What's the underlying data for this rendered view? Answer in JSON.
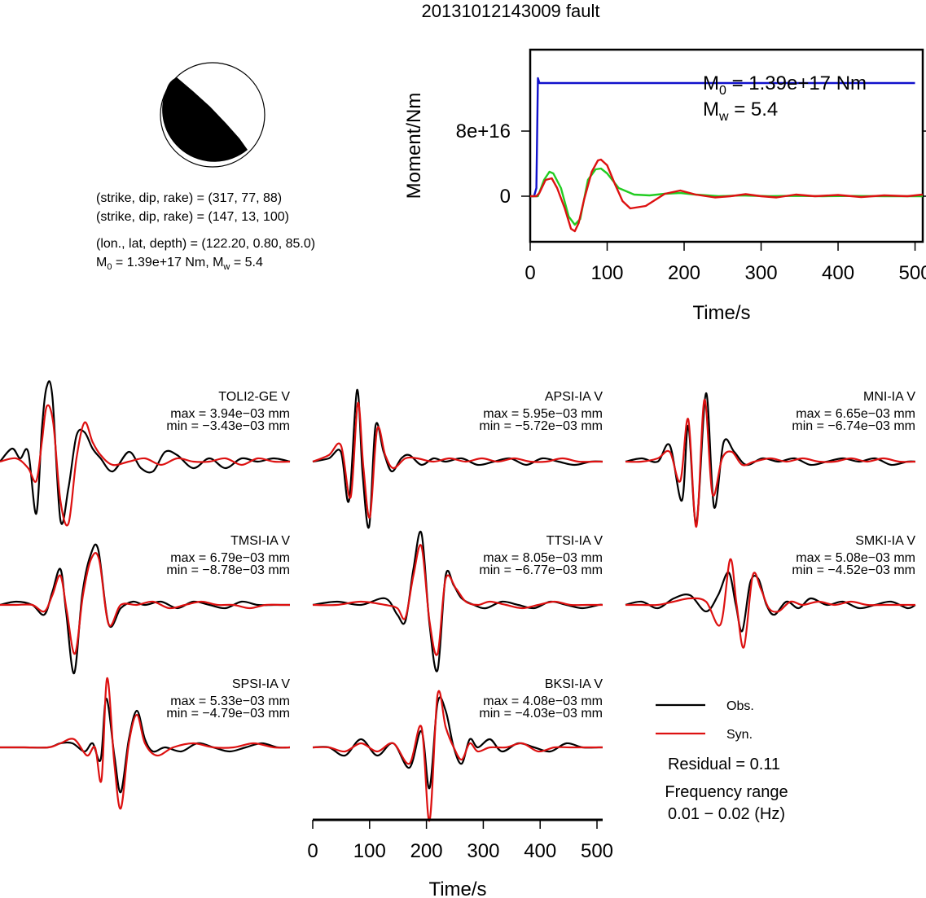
{
  "title": "20131012143009 fault",
  "source_params": {
    "line1": "(strike, dip, rake) = (317, 77, 88)",
    "line2": "(strike, dip, rake) = (147, 13, 100)",
    "line3": "(lon., lat, depth) = (122.20, 0.80, 85.0)",
    "m0_prefix": "M",
    "m0_sub": "0",
    "m0_mid": " = 1.39e+17 Nm, M",
    "mw_sub": "w",
    "mw_end": " = 5.4"
  },
  "moment_annotation": {
    "m0_symbol": "M",
    "m0_sub": "0",
    "m0_text": " = 1.39e+17 Nm",
    "mw_symbol": "M",
    "mw_sub": "w",
    "mw_text": " = 5.4"
  },
  "colors": {
    "observed": "#000000",
    "synthetic": "#dd1111",
    "cumulative_moment": "#1111cc",
    "moment_rate": "#22cc22"
  },
  "chart_data": [
    {
      "type": "line",
      "xlabel": "Time/s",
      "ylabel": "Moment/Nm",
      "xlim": [
        0,
        510
      ],
      "ylim": [
        -5.6e+16,
        1.8e+17
      ],
      "xticks": [
        0,
        100,
        200,
        300,
        400,
        500
      ],
      "xtick_labels": [
        "0",
        "100",
        "200",
        "300",
        "400",
        "500"
      ],
      "yticks": [
        0,
        8e+16
      ],
      "ytick_labels": [
        "0",
        "8e+16"
      ],
      "series": [
        {
          "x": [
            0,
            5,
            8,
            10,
            12,
            500
          ],
          "y": [
            0,
            0,
            1e+16,
            1.45e+17,
            1.39e+17,
            1.39e+17
          ]
        },
        {
          "x": [
            0,
            10,
            18,
            25,
            30,
            40,
            50,
            58,
            65,
            75,
            85,
            92,
            100,
            115,
            135,
            155,
            175,
            195,
            215,
            245,
            275,
            310,
            345,
            380,
            420,
            460,
            510
          ],
          "y": [
            0,
            0,
            2e+16,
            3e+16,
            2.8e+16,
            1e+16,
            -2.5e+16,
            -3.5e+16,
            -2.8e+16,
            2e+16,
            3.3e+16,
            3.4e+16,
            2.8e+16,
            1e+16,
            2000000000000000.0,
            1000000000000000.0,
            3000000000000000.0,
            4000000000000000.0,
            2000000000000000.0,
            0,
            1000000000000000.0,
            0,
            500000000000000.0,
            0,
            300000000000000.0,
            0,
            0
          ]
        },
        {
          "x": [
            0,
            8,
            12,
            20,
            28,
            35,
            45,
            53,
            58,
            63,
            70,
            80,
            88,
            92,
            100,
            110,
            120,
            130,
            150,
            175,
            195,
            215,
            240,
            260,
            280,
            300,
            320,
            345,
            370,
            400,
            430,
            460,
            490,
            510
          ],
          "y": [
            0,
            0,
            4000000000000000.0,
            2e+16,
            2.2e+16,
            1e+16,
            -1.5e+16,
            -4e+16,
            -4.3e+16,
            -3.3e+16,
            -4000000000000000.0,
            3e+16,
            4.4e+16,
            4.5e+16,
            3.8e+16,
            1.5e+16,
            -6000000000000000.0,
            -1.5e+16,
            -1.2e+16,
            3000000000000000.0,
            7000000000000000.0,
            2000000000000000.0,
            -1500000000000000.0,
            0,
            2500000000000000.0,
            0,
            -1500000000000000.0,
            2000000000000000.0,
            0,
            1500000000000000.0,
            -1000000000000000.0,
            1000000000000000.0,
            0,
            2000000000000000.0
          ]
        }
      ]
    },
    {
      "type": "line",
      "layout": "grid-3x3",
      "xlabel": "Time/s",
      "xlim": [
        0,
        510
      ],
      "xticks": [
        0,
        100,
        200,
        300,
        400,
        500
      ],
      "xtick_labels": [
        "0",
        "100",
        "200",
        "300",
        "400",
        "500"
      ],
      "legend": {
        "position": "bottom-right",
        "obs_label": "Obs.",
        "syn_label": "Syn."
      },
      "residual_text": "Residual = 0.11",
      "freq_line1": "Frequency range",
      "freq_line2": "0.01 − 0.02 (Hz)",
      "stations": [
        {
          "name": "TOLI2-GE V",
          "max_text": "max = 3.94e−03 mm",
          "min_text": "min = −3.43e−03 mm",
          "obs_x": [
            0,
            15,
            25,
            35,
            45,
            52,
            58,
            65,
            75,
            85,
            95,
            105,
            115,
            125,
            140,
            160,
            175,
            190,
            205,
            220,
            240,
            260,
            280,
            300,
            320,
            340,
            360
          ],
          "obs_y": [
            0,
            0.4,
            0.1,
            0.3,
            -1.6,
            1.0,
            2.3,
            2.0,
            -1.8,
            -0.8,
            0.8,
            0.9,
            0.4,
            0.1,
            -0.3,
            0.3,
            -0.2,
            -0.3,
            0.3,
            0.2,
            -0.2,
            0.1,
            -0.2,
            0.1,
            0.0,
            0.1,
            0.0
          ],
          "syn_x": [
            0,
            20,
            35,
            45,
            52,
            58,
            66,
            75,
            85,
            95,
            105,
            115,
            125,
            140,
            160,
            180,
            200,
            220,
            240,
            260,
            280,
            300,
            320,
            340,
            360
          ],
          "syn_y": [
            0,
            0.1,
            -0.2,
            -0.6,
            0.6,
            1.7,
            1.2,
            -1.2,
            -1.9,
            0.1,
            1.2,
            0.6,
            0.2,
            -0.1,
            0.0,
            0.1,
            -0.1,
            0.1,
            0.0,
            0.0,
            0.1,
            -0.1,
            0.1,
            0.0,
            0.0
          ]
        },
        {
          "name": "APSI-IA V",
          "max_text": "max = 5.95e−03 mm",
          "min_text": "min = −5.72e−03 mm",
          "obs_x": [
            0,
            20,
            35,
            45,
            55,
            62,
            70,
            78,
            88,
            98,
            110,
            120,
            135,
            150,
            165,
            185,
            205,
            225,
            245,
            265,
            285,
            305,
            325,
            345,
            360
          ],
          "obs_y": [
            0,
            0.1,
            0.3,
            -1.2,
            2.2,
            -0.4,
            -2.0,
            1.1,
            0.3,
            -0.3,
            0.1,
            0.2,
            -0.1,
            0.1,
            0.0,
            0.1,
            -0.1,
            0.0,
            0.1,
            -0.1,
            0.1,
            0.0,
            -0.1,
            0.0,
            0.0
          ],
          "syn_x": [
            0,
            20,
            35,
            47,
            56,
            63,
            71,
            80,
            90,
            100,
            115,
            130,
            150,
            170,
            190,
            210,
            230,
            250,
            270,
            290,
            310,
            330,
            350,
            360
          ],
          "syn_y": [
            0,
            0.2,
            0.5,
            -1.1,
            1.8,
            -0.2,
            -1.7,
            1.0,
            0.2,
            -0.2,
            0.1,
            0.1,
            0.0,
            0.1,
            0.0,
            0.1,
            0.0,
            0.1,
            0.0,
            0.0,
            0.1,
            0.0,
            0.0,
            0.0
          ]
        },
        {
          "name": "MNI-IA V",
          "max_text": "max = 6.65e−03 mm",
          "min_text": "min = −6.74e−03 mm",
          "obs_x": [
            0,
            20,
            40,
            55,
            70,
            78,
            88,
            100,
            110,
            122,
            135,
            150,
            170,
            190,
            210,
            230,
            250,
            270,
            290,
            310,
            330,
            350,
            360
          ],
          "obs_y": [
            0,
            0.1,
            0.0,
            0.5,
            -1.2,
            1.1,
            -1.9,
            2.1,
            -1.4,
            0.6,
            0.3,
            -0.1,
            0.1,
            0.0,
            0.1,
            -0.1,
            0.0,
            0.1,
            0.0,
            0.1,
            -0.1,
            0.0,
            0.0
          ],
          "syn_x": [
            0,
            20,
            40,
            55,
            68,
            78,
            88,
            98,
            108,
            120,
            132,
            145,
            160,
            180,
            200,
            220,
            240,
            260,
            280,
            300,
            320,
            340,
            360
          ],
          "syn_y": [
            0,
            0.0,
            0.1,
            0.3,
            -0.6,
            1.3,
            -2.0,
            1.9,
            -1.0,
            0.1,
            0.3,
            -0.1,
            0.0,
            0.1,
            0.0,
            0.1,
            0.0,
            0.0,
            0.1,
            0.0,
            0.1,
            0.0,
            0.0
          ]
        },
        {
          "name": "TMSI-IA V",
          "max_text": "max = 6.79e−03 mm",
          "min_text": "min = −8.78e−03 mm",
          "obs_x": [
            0,
            20,
            40,
            55,
            65,
            75,
            82,
            92,
            102,
            112,
            122,
            135,
            150,
            165,
            180,
            200,
            220,
            240,
            260,
            280,
            300,
            320,
            340,
            360
          ],
          "obs_y": [
            0,
            0.1,
            0.0,
            -0.3,
            0.4,
            1.1,
            -0.2,
            -2.1,
            0.3,
            1.5,
            1.7,
            -0.6,
            -0.1,
            0.1,
            0.0,
            0.1,
            -0.1,
            0.1,
            0.0,
            -0.1,
            0.1,
            0.0,
            0.0,
            0.0
          ],
          "syn_x": [
            0,
            20,
            40,
            55,
            65,
            75,
            83,
            93,
            103,
            113,
            123,
            135,
            150,
            170,
            190,
            210,
            230,
            250,
            270,
            290,
            310,
            330,
            350,
            360
          ],
          "syn_y": [
            0,
            0.0,
            0.0,
            -0.2,
            0.3,
            0.9,
            -0.2,
            -1.5,
            0.3,
            1.4,
            1.4,
            -0.6,
            0.0,
            0.0,
            0.1,
            -0.1,
            0.0,
            0.1,
            0.0,
            0.0,
            -0.1,
            0.0,
            0.0,
            0.0
          ]
        },
        {
          "name": "TTSI-IA V",
          "max_text": "max = 8.05e−03 mm",
          "min_text": "min = −6.77e−03 mm",
          "obs_x": [
            0,
            30,
            60,
            90,
            105,
            115,
            125,
            135,
            145,
            155,
            165,
            175,
            185,
            200,
            215,
            235,
            255,
            275,
            295,
            315,
            335,
            355,
            360
          ],
          "obs_y": [
            0,
            0.1,
            0.0,
            0.2,
            -0.3,
            -0.5,
            1.1,
            2.2,
            -0.6,
            -2.0,
            0.9,
            0.6,
            0.2,
            0.0,
            -0.1,
            0.1,
            0.0,
            -0.1,
            0.1,
            0.0,
            -0.1,
            0.0,
            0.0
          ],
          "syn_x": [
            0,
            30,
            60,
            90,
            105,
            115,
            125,
            135,
            145,
            155,
            165,
            178,
            190,
            205,
            220,
            240,
            260,
            280,
            300,
            320,
            340,
            360
          ],
          "syn_y": [
            0,
            0.0,
            0.1,
            0.0,
            -0.1,
            -0.4,
            0.9,
            1.8,
            -0.5,
            -1.5,
            0.8,
            0.5,
            0.1,
            0.0,
            0.1,
            0.0,
            -0.1,
            0.0,
            0.1,
            0.0,
            0.0,
            0.0
          ]
        },
        {
          "name": "SMKI-IA V",
          "max_text": "max = 5.08e−03 mm",
          "min_text": "min = −4.52e−03 mm",
          "obs_x": [
            0,
            20,
            40,
            60,
            80,
            100,
            115,
            128,
            137,
            145,
            155,
            165,
            175,
            185,
            200,
            215,
            230,
            250,
            270,
            290,
            310,
            330,
            350,
            360
          ],
          "obs_y": [
            0,
            0.1,
            -0.1,
            0.2,
            0.3,
            -0.2,
            0.3,
            1.0,
            0.0,
            -0.8,
            0.7,
            0.8,
            0.0,
            -0.3,
            0.1,
            -0.1,
            0.2,
            0.0,
            0.1,
            -0.1,
            0.0,
            0.1,
            -0.1,
            0.0
          ],
          "syn_x": [
            0,
            20,
            40,
            60,
            80,
            100,
            118,
            130,
            138,
            147,
            158,
            168,
            178,
            190,
            205,
            220,
            240,
            260,
            280,
            300,
            320,
            340,
            360
          ],
          "syn_y": [
            0,
            0.0,
            0.0,
            0.1,
            0.2,
            0.1,
            -0.6,
            1.4,
            0.0,
            -1.3,
            0.9,
            0.5,
            -0.1,
            -0.2,
            0.1,
            0.0,
            0.1,
            0.0,
            0.1,
            0.0,
            0.0,
            0.0,
            0.0
          ]
        },
        {
          "name": "SPSI-IA V",
          "max_text": "max = 5.33e−03 mm",
          "min_text": "min = −4.79e−03 mm",
          "obs_x": [
            0,
            30,
            60,
            75,
            90,
            105,
            115,
            125,
            132,
            142,
            150,
            160,
            170,
            180,
            190,
            205,
            225,
            245,
            265,
            285,
            305,
            325,
            345,
            360
          ],
          "obs_y": [
            0,
            0.0,
            0.0,
            0.1,
            0.1,
            -0.1,
            0.1,
            -0.3,
            1.2,
            -0.2,
            -1.1,
            0.2,
            0.9,
            0.2,
            -0.1,
            0.0,
            -0.1,
            0.1,
            0.0,
            -0.1,
            0.0,
            0.1,
            0.0,
            0.0
          ],
          "syn_x": [
            0,
            30,
            60,
            75,
            92,
            108,
            118,
            126,
            133,
            142,
            150,
            160,
            170,
            180,
            195,
            215,
            240,
            265,
            290,
            315,
            340,
            360
          ],
          "syn_y": [
            0,
            0.0,
            0.0,
            0.1,
            0.2,
            -0.2,
            0.0,
            -0.8,
            1.7,
            -0.4,
            -1.5,
            0.1,
            0.8,
            0.1,
            -0.2,
            0.0,
            0.1,
            0.0,
            0.0,
            0.1,
            0.0,
            0.0
          ]
        },
        {
          "name": "BKSI-IA V",
          "max_text": "max = 4.08e−03 mm",
          "min_text": "min = −4.03e−03 mm",
          "obs_x": [
            0,
            20,
            40,
            60,
            80,
            100,
            120,
            135,
            145,
            155,
            165,
            175,
            185,
            195,
            205,
            220,
            235,
            255,
            275,
            295,
            315,
            335,
            355,
            360
          ],
          "obs_y": [
            0,
            0.0,
            -0.2,
            0.2,
            -0.2,
            0.1,
            -0.5,
            0.4,
            -1.0,
            1.1,
            0.9,
            0.0,
            -0.4,
            0.2,
            0.0,
            0.2,
            -0.1,
            0.1,
            0.0,
            -0.1,
            0.1,
            0.0,
            0.0,
            0.0
          ],
          "syn_x": [
            0,
            20,
            40,
            60,
            80,
            100,
            120,
            135,
            145,
            155,
            165,
            175,
            185,
            195,
            205,
            220,
            240,
            260,
            280,
            300,
            320,
            340,
            360
          ],
          "syn_y": [
            0,
            0.0,
            -0.1,
            0.1,
            -0.1,
            0.1,
            -0.4,
            0.5,
            -1.8,
            1.3,
            0.5,
            0.0,
            -0.3,
            0.1,
            -0.1,
            0.0,
            0.0,
            0.1,
            -0.1,
            0.0,
            0.0,
            0.0,
            0.0
          ]
        }
      ]
    }
  ]
}
